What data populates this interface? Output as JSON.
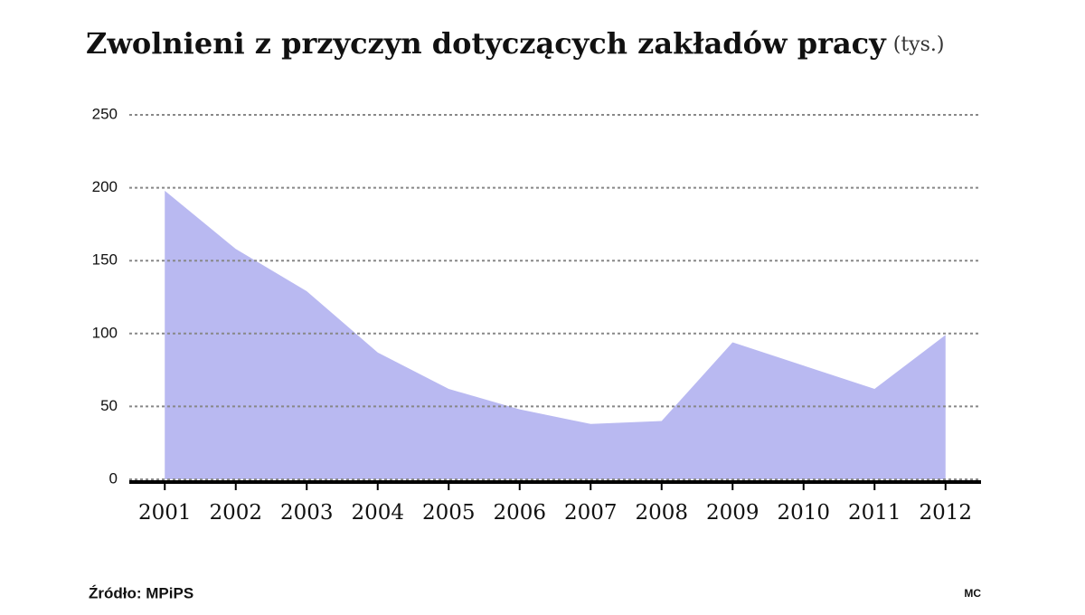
{
  "chart_data": {
    "type": "area",
    "title": "Zwolnieni z przyczyn dotyczących zakładów pracy",
    "subtitle": "(tys.)",
    "x": [
      2001,
      2002,
      2003,
      2004,
      2005,
      2006,
      2007,
      2008,
      2009,
      2010,
      2011,
      2012
    ],
    "values": [
      198,
      158,
      129,
      87,
      62,
      48,
      38,
      40,
      94,
      78,
      62,
      99
    ],
    "color": "#b9b9f1",
    "xlim": [
      2000.5,
      2012.5
    ],
    "xticks": [
      2001,
      2002,
      2003,
      2004,
      2005,
      2006,
      2007,
      2008,
      2009,
      2010,
      2011,
      2012
    ],
    "ylim": [
      0,
      250
    ],
    "yticks": [
      0,
      50,
      100,
      150,
      200,
      250
    ],
    "grid": true,
    "source": "Źródło: MPiPS",
    "credit": "MC"
  }
}
